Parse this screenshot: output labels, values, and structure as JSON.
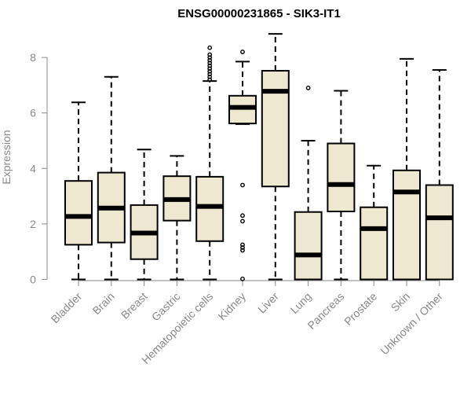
{
  "chart_data": {
    "type": "boxplot",
    "title": "ENSG00000231865 - SIK3-IT1",
    "xlabel": "",
    "ylabel": "Expression",
    "ylim": [
      0,
      8.8
    ],
    "yticks": [
      0,
      2,
      4,
      6,
      8
    ],
    "grid": false,
    "categories": [
      "Bladder",
      "Brain",
      "Breast",
      "Gastric",
      "Hematopoietic cells",
      "Kidney",
      "Liver",
      "Lung",
      "Pancreas",
      "Prostate",
      "Skin",
      "Unknown / Other"
    ],
    "boxes": [
      {
        "min": 0.0,
        "q1": 1.25,
        "median": 2.27,
        "q3": 3.55,
        "max": 6.38,
        "outliers": []
      },
      {
        "min": 0.0,
        "q1": 1.33,
        "median": 2.57,
        "q3": 3.85,
        "max": 7.3,
        "outliers": []
      },
      {
        "min": 0.0,
        "q1": 0.73,
        "median": 1.67,
        "q3": 2.68,
        "max": 4.68,
        "outliers": []
      },
      {
        "min": 0.0,
        "q1": 2.12,
        "median": 2.88,
        "q3": 3.72,
        "max": 4.45,
        "outliers": []
      },
      {
        "min": 0.0,
        "q1": 1.38,
        "median": 2.63,
        "q3": 3.7,
        "max": 7.15,
        "outliers": [
          7.2,
          7.3,
          7.4,
          7.5,
          7.6,
          7.7,
          7.8,
          7.9,
          8.0,
          8.1,
          8.35
        ]
      },
      {
        "min": 5.6,
        "q1": 5.62,
        "median": 6.2,
        "q3": 6.62,
        "max": 7.85,
        "outliers": [
          8.2,
          3.4,
          2.3,
          2.1,
          1.25,
          1.15,
          1.05,
          0.02
        ]
      },
      {
        "min": 0.0,
        "q1": 3.35,
        "median": 6.78,
        "q3": 7.52,
        "max": 8.85,
        "outliers": []
      },
      {
        "min": 0.0,
        "q1": 0.0,
        "median": 0.88,
        "q3": 2.43,
        "max": 5.0,
        "outliers": [
          6.9
        ]
      },
      {
        "min": 0.0,
        "q1": 2.45,
        "median": 3.42,
        "q3": 4.9,
        "max": 6.8,
        "outliers": []
      },
      {
        "min": 0.0,
        "q1": 0.0,
        "median": 1.83,
        "q3": 2.6,
        "max": 4.1,
        "outliers": []
      },
      {
        "min": 0.0,
        "q1": 0.0,
        "median": 3.15,
        "q3": 3.93,
        "max": 7.95,
        "outliers": []
      },
      {
        "min": 0.0,
        "q1": 0.0,
        "median": 2.22,
        "q3": 3.4,
        "max": 7.55,
        "outliers": []
      }
    ]
  }
}
